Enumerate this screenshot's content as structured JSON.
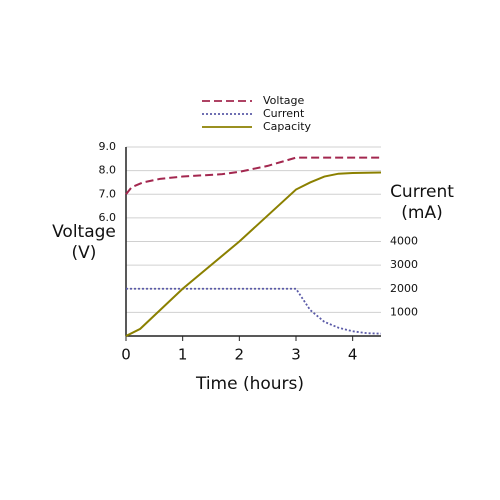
{
  "chart_data": {
    "type": "line",
    "xlabel": "Time (hours)",
    "ylabel": [
      "Voltage",
      "(V)"
    ],
    "y2label": [
      "Current",
      "(mA)"
    ],
    "xlim": [
      0,
      4.5
    ],
    "xticks": [
      0,
      1,
      2,
      3,
      4
    ],
    "ylim": [
      1,
      9
    ],
    "yticks": [
      {
        "value": 6,
        "label": "6.0"
      },
      {
        "value": 7,
        "label": "7.0"
      },
      {
        "value": 8,
        "label": "8.0"
      },
      {
        "value": 9,
        "label": "9.0"
      }
    ],
    "y2lim": [
      0,
      8000
    ],
    "y2ticks": [
      1000,
      2000,
      3000,
      4000
    ],
    "grid": true,
    "legend": "top",
    "series": [
      {
        "name": "Voltage",
        "color": "#a3274f",
        "dash": "dashed",
        "x": [
          0,
          0.1,
          0.3,
          0.6,
          1,
          1.7,
          2,
          2.5,
          3,
          4.5
        ],
        "values": [
          7.0,
          7.3,
          7.5,
          7.65,
          7.75,
          7.85,
          7.95,
          8.2,
          8.55,
          8.55
        ]
      },
      {
        "name": "Current",
        "color": "#5b5ba8",
        "dash": "dotted",
        "axis": "y2",
        "x": [
          0,
          3,
          3.25,
          3.5,
          3.75,
          4,
          4.25,
          4.5
        ],
        "values": [
          2000,
          2000,
          1100,
          600,
          350,
          200,
          120,
          100
        ]
      },
      {
        "name": "Capacity",
        "color": "#8b8000",
        "dash": "solid",
        "axis": "y2",
        "x": [
          0,
          0.25,
          1,
          2,
          3,
          3.25,
          3.5,
          3.75,
          4,
          4.5
        ],
        "values": [
          0,
          300,
          2000,
          4000,
          6200,
          6500,
          6750,
          6870,
          6900,
          6920
        ]
      }
    ]
  }
}
